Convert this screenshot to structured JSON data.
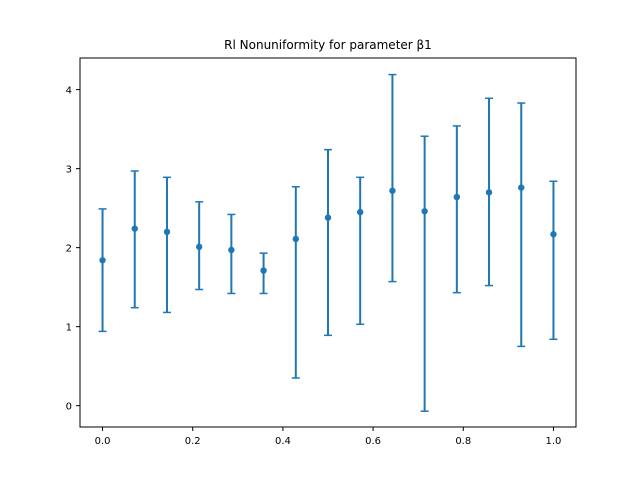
{
  "chart_data": {
    "type": "scatter",
    "title": "Rl Nonuniformity for parameter β1",
    "xlabel": "",
    "ylabel": "",
    "xlim": [
      -0.05,
      1.05
    ],
    "ylim": [
      -0.27,
      4.4
    ],
    "x_ticks": [
      0.0,
      0.2,
      0.4,
      0.6,
      0.8,
      1.0
    ],
    "x_tick_labels": [
      "0.0",
      "0.2",
      "0.4",
      "0.6",
      "0.8",
      "1.0"
    ],
    "y_ticks": [
      0,
      1,
      2,
      3,
      4
    ],
    "y_tick_labels": [
      "0",
      "1",
      "2",
      "3",
      "4"
    ],
    "grid": false,
    "color": "#1f77b4",
    "series": [
      {
        "x": [
          0.0,
          0.0714,
          0.1429,
          0.2143,
          0.2857,
          0.3571,
          0.4286,
          0.5,
          0.5714,
          0.6429,
          0.7143,
          0.7857,
          0.8571,
          0.9286,
          1.0
        ],
        "y": [
          1.84,
          2.24,
          2.2,
          2.01,
          1.97,
          1.71,
          2.11,
          2.38,
          2.45,
          2.72,
          2.46,
          2.64,
          2.7,
          2.76,
          2.17
        ],
        "lower": [
          0.94,
          1.24,
          1.18,
          1.47,
          1.42,
          1.42,
          0.35,
          0.89,
          1.03,
          1.57,
          -0.07,
          1.43,
          1.52,
          0.75,
          0.84
        ],
        "upper": [
          2.49,
          2.97,
          2.89,
          2.58,
          2.42,
          1.93,
          2.77,
          3.24,
          2.89,
          4.19,
          3.41,
          3.54,
          3.89,
          3.83,
          2.84
        ]
      }
    ]
  }
}
